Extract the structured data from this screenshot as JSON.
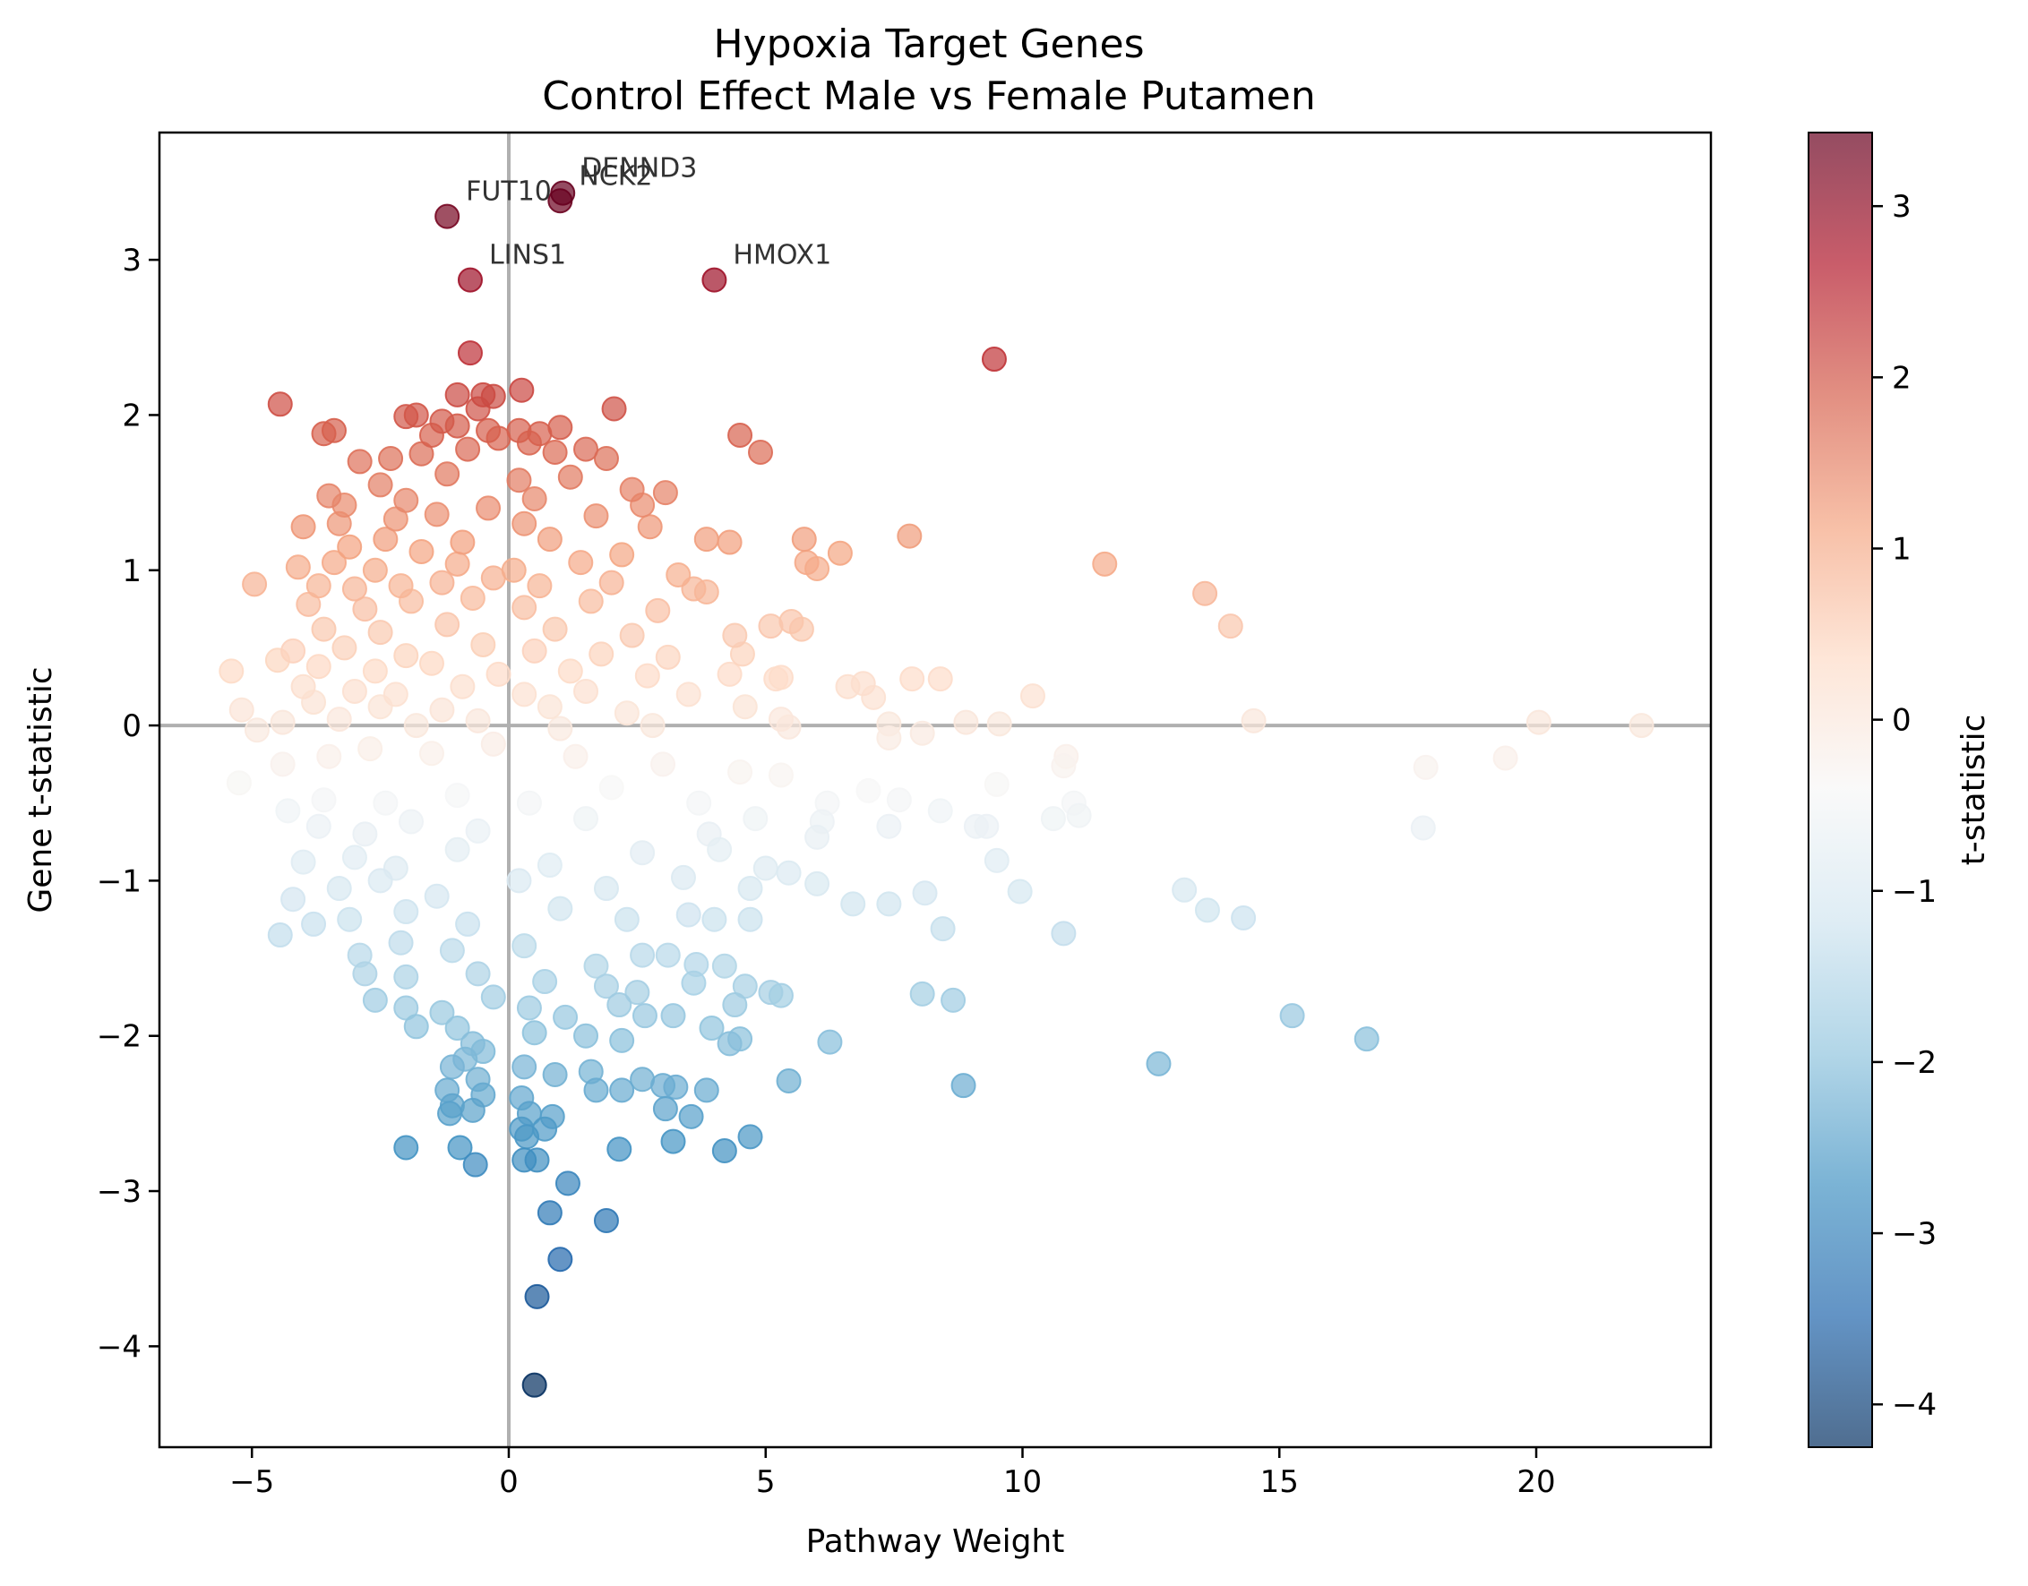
{
  "chart_data": {
    "type": "scatter",
    "title": "Hypoxia Target Genes",
    "subtitle": "Control Effect Male vs Female Putamen",
    "xlabel": "Pathway Weight",
    "ylabel": "Gene t-statistic",
    "xlim": [
      -6.8,
      23.4
    ],
    "ylim": [
      -4.65,
      3.82
    ],
    "xticks": [
      -5,
      0,
      5,
      10,
      15,
      20
    ],
    "xtick_labels": [
      "−5",
      "0",
      "5",
      "10",
      "15",
      "20"
    ],
    "yticks": [
      -4,
      -3,
      -2,
      -1,
      0,
      1,
      2,
      3
    ],
    "ytick_labels": [
      "−4",
      "−3",
      "−2",
      "−1",
      "0",
      "1",
      "2",
      "3"
    ],
    "reference_lines": {
      "x": 0,
      "y": 0
    },
    "grid": false,
    "colormap": "RdBu_r",
    "marker_alpha": 0.7,
    "colorbar": {
      "label": "t-statistic",
      "range": [
        -4.25,
        3.43
      ],
      "ticks": [
        -4,
        -3,
        -2,
        -1,
        0,
        1,
        2,
        3
      ],
      "tick_labels": [
        "−4",
        "−3",
        "−2",
        "−1",
        "0",
        "1",
        "2",
        "3"
      ]
    },
    "colors": {
      "neg_strong": "#053061",
      "neg_mid": "#2166ac",
      "neg_light": "#4393c3",
      "neg_pale": "#92c5de",
      "neg_faint": "#d1e5f0",
      "neutral": "#f7f7f7",
      "pos_faint": "#fddbc7",
      "pos_pale": "#f4a582",
      "pos_light": "#d6604d",
      "pos_mid": "#b2182b",
      "pos_strong": "#67001f",
      "axes": "#000000",
      "reference": "#b0b0b0"
    },
    "annotated_genes": [
      {
        "label": "DENND3",
        "x": 1.05,
        "y": 3.43
      },
      {
        "label": "NCK2",
        "x": 1.0,
        "y": 3.38
      },
      {
        "label": "FUT10",
        "x": -1.2,
        "y": 3.28
      },
      {
        "label": "LINS1",
        "x": -0.75,
        "y": 2.87
      },
      {
        "label": "HMOX1",
        "x": 4.0,
        "y": 2.87
      }
    ],
    "points": [
      [
        1.05,
        3.43
      ],
      [
        1.0,
        3.38
      ],
      [
        -1.2,
        3.28
      ],
      [
        -0.75,
        2.87
      ],
      [
        4.0,
        2.87
      ],
      [
        9.45,
        2.36
      ],
      [
        -0.75,
        2.4
      ],
      [
        0.25,
        2.16
      ],
      [
        -1.0,
        2.13
      ],
      [
        -0.5,
        2.13
      ],
      [
        -0.3,
        2.12
      ],
      [
        2.05,
        2.04
      ],
      [
        -4.45,
        2.07
      ],
      [
        -0.6,
        2.04
      ],
      [
        -1.8,
        2.0
      ],
      [
        -2.0,
        1.99
      ],
      [
        -1.3,
        1.96
      ],
      [
        -1.0,
        1.93
      ],
      [
        -0.4,
        1.9
      ],
      [
        0.2,
        1.9
      ],
      [
        1.0,
        1.92
      ],
      [
        0.6,
        1.88
      ],
      [
        4.5,
        1.87
      ],
      [
        4.9,
        1.76
      ],
      [
        -3.6,
        1.88
      ],
      [
        -3.4,
        1.9
      ],
      [
        -1.5,
        1.87
      ],
      [
        -0.2,
        1.85
      ],
      [
        0.4,
        1.82
      ],
      [
        1.5,
        1.78
      ],
      [
        -2.9,
        1.7
      ],
      [
        -2.3,
        1.72
      ],
      [
        -1.7,
        1.75
      ],
      [
        -0.8,
        1.78
      ],
      [
        0.9,
        1.76
      ],
      [
        1.9,
        1.72
      ],
      [
        -2.5,
        1.55
      ],
      [
        -1.2,
        1.62
      ],
      [
        0.2,
        1.58
      ],
      [
        1.2,
        1.6
      ],
      [
        2.4,
        1.52
      ],
      [
        3.05,
        1.5
      ],
      [
        -3.5,
        1.48
      ],
      [
        -3.2,
        1.42
      ],
      [
        -2.0,
        1.45
      ],
      [
        -0.4,
        1.4
      ],
      [
        0.5,
        1.46
      ],
      [
        2.6,
        1.42
      ],
      [
        -4.0,
        1.28
      ],
      [
        -3.3,
        1.3
      ],
      [
        -2.2,
        1.33
      ],
      [
        -1.4,
        1.36
      ],
      [
        0.3,
        1.3
      ],
      [
        1.7,
        1.35
      ],
      [
        2.75,
        1.28
      ],
      [
        3.85,
        1.2
      ],
      [
        4.3,
        1.18
      ],
      [
        5.75,
        1.2
      ],
      [
        7.8,
        1.22
      ],
      [
        -3.1,
        1.15
      ],
      [
        -2.4,
        1.2
      ],
      [
        -1.7,
        1.12
      ],
      [
        -0.9,
        1.18
      ],
      [
        0.8,
        1.2
      ],
      [
        2.2,
        1.1
      ],
      [
        5.8,
        1.05
      ],
      [
        6.0,
        1.01
      ],
      [
        6.45,
        1.11
      ],
      [
        11.6,
        1.04
      ],
      [
        -4.1,
        1.02
      ],
      [
        -3.4,
        1.05
      ],
      [
        -2.6,
        1.0
      ],
      [
        -1.0,
        1.04
      ],
      [
        0.1,
        1.0
      ],
      [
        1.4,
        1.05
      ],
      [
        3.3,
        0.97
      ],
      [
        -4.95,
        0.91
      ],
      [
        -3.7,
        0.9
      ],
      [
        -3.0,
        0.88
      ],
      [
        -2.1,
        0.9
      ],
      [
        -1.3,
        0.92
      ],
      [
        -0.3,
        0.95
      ],
      [
        0.6,
        0.9
      ],
      [
        2.0,
        0.92
      ],
      [
        3.6,
        0.88
      ],
      [
        3.85,
        0.86
      ],
      [
        13.55,
        0.85
      ],
      [
        -3.9,
        0.78
      ],
      [
        -2.8,
        0.75
      ],
      [
        -1.9,
        0.8
      ],
      [
        -0.7,
        0.82
      ],
      [
        0.3,
        0.76
      ],
      [
        1.6,
        0.8
      ],
      [
        2.9,
        0.74
      ],
      [
        5.5,
        0.67
      ],
      [
        5.1,
        0.64
      ],
      [
        5.7,
        0.62
      ],
      [
        14.05,
        0.64
      ],
      [
        -3.6,
        0.62
      ],
      [
        -2.5,
        0.6
      ],
      [
        -1.2,
        0.65
      ],
      [
        0.9,
        0.62
      ],
      [
        2.4,
        0.58
      ],
      [
        4.4,
        0.58
      ],
      [
        -4.2,
        0.48
      ],
      [
        -3.2,
        0.5
      ],
      [
        -2.0,
        0.45
      ],
      [
        -0.5,
        0.52
      ],
      [
        0.5,
        0.48
      ],
      [
        1.8,
        0.46
      ],
      [
        3.1,
        0.44
      ],
      [
        4.55,
        0.46
      ],
      [
        -5.4,
        0.35
      ],
      [
        -4.5,
        0.42
      ],
      [
        -3.7,
        0.38
      ],
      [
        -2.6,
        0.35
      ],
      [
        -1.5,
        0.4
      ],
      [
        -0.2,
        0.33
      ],
      [
        1.2,
        0.35
      ],
      [
        2.7,
        0.32
      ],
      [
        4.3,
        0.33
      ],
      [
        5.2,
        0.3
      ],
      [
        5.3,
        0.31
      ],
      [
        7.85,
        0.3
      ],
      [
        8.4,
        0.3
      ],
      [
        -4.0,
        0.25
      ],
      [
        -3.0,
        0.22
      ],
      [
        -2.2,
        0.2
      ],
      [
        -0.9,
        0.25
      ],
      [
        0.3,
        0.2
      ],
      [
        1.5,
        0.22
      ],
      [
        3.5,
        0.2
      ],
      [
        6.6,
        0.25
      ],
      [
        6.9,
        0.27
      ],
      [
        7.1,
        0.18
      ],
      [
        10.2,
        0.19
      ],
      [
        -5.2,
        0.1
      ],
      [
        -3.8,
        0.15
      ],
      [
        -2.5,
        0.12
      ],
      [
        -1.3,
        0.1
      ],
      [
        0.8,
        0.12
      ],
      [
        2.3,
        0.08
      ],
      [
        4.6,
        0.12
      ],
      [
        -4.9,
        -0.03
      ],
      [
        -4.4,
        0.02
      ],
      [
        -3.3,
        0.04
      ],
      [
        -1.8,
        0.0
      ],
      [
        -0.6,
        0.03
      ],
      [
        1.0,
        -0.02
      ],
      [
        2.8,
        0.0
      ],
      [
        5.3,
        0.04
      ],
      [
        5.45,
        -0.01
      ],
      [
        7.4,
        0.01
      ],
      [
        8.05,
        -0.05
      ],
      [
        8.9,
        0.02
      ],
      [
        9.55,
        0.01
      ],
      [
        14.5,
        0.03
      ],
      [
        20.05,
        0.02
      ],
      [
        22.05,
        0.0
      ],
      [
        7.4,
        -0.08
      ],
      [
        10.85,
        -0.2
      ],
      [
        10.8,
        -0.26
      ],
      [
        17.85,
        -0.27
      ],
      [
        19.4,
        -0.21
      ],
      [
        -5.25,
        -0.37
      ],
      [
        -4.4,
        -0.25
      ],
      [
        -3.5,
        -0.2
      ],
      [
        -2.7,
        -0.15
      ],
      [
        -1.5,
        -0.18
      ],
      [
        -0.3,
        -0.12
      ],
      [
        1.3,
        -0.2
      ],
      [
        3.0,
        -0.25
      ],
      [
        4.5,
        -0.3
      ],
      [
        5.3,
        -0.32
      ],
      [
        -4.3,
        -0.55
      ],
      [
        -3.6,
        -0.48
      ],
      [
        -2.4,
        -0.5
      ],
      [
        -1.0,
        -0.45
      ],
      [
        0.4,
        -0.5
      ],
      [
        2.0,
        -0.4
      ],
      [
        3.7,
        -0.5
      ],
      [
        4.8,
        -0.6
      ],
      [
        6.2,
        -0.5
      ],
      [
        7.0,
        -0.42
      ],
      [
        7.6,
        -0.48
      ],
      [
        8.4,
        -0.55
      ],
      [
        9.5,
        -0.38
      ],
      [
        9.3,
        -0.65
      ],
      [
        9.1,
        -0.65
      ],
      [
        10.6,
        -0.6
      ],
      [
        11.1,
        -0.58
      ],
      [
        11.0,
        -0.5
      ],
      [
        17.8,
        -0.66
      ],
      [
        -3.7,
        -0.65
      ],
      [
        -2.8,
        -0.7
      ],
      [
        -1.9,
        -0.62
      ],
      [
        -0.6,
        -0.68
      ],
      [
        1.5,
        -0.6
      ],
      [
        3.9,
        -0.7
      ],
      [
        6.1,
        -0.62
      ],
      [
        6.0,
        -0.72
      ],
      [
        7.4,
        -0.65
      ],
      [
        -4.0,
        -0.88
      ],
      [
        -3.0,
        -0.85
      ],
      [
        -2.2,
        -0.92
      ],
      [
        -1.0,
        -0.8
      ],
      [
        0.8,
        -0.9
      ],
      [
        2.6,
        -0.82
      ],
      [
        4.1,
        -0.8
      ],
      [
        5.0,
        -0.92
      ],
      [
        5.45,
        -0.95
      ],
      [
        9.5,
        -0.87
      ],
      [
        -3.3,
        -1.05
      ],
      [
        -2.5,
        -1.0
      ],
      [
        -1.4,
        -1.1
      ],
      [
        0.2,
        -1.0
      ],
      [
        1.9,
        -1.05
      ],
      [
        3.4,
        -0.98
      ],
      [
        4.7,
        -1.05
      ],
      [
        6.0,
        -1.02
      ],
      [
        8.1,
        -1.08
      ],
      [
        9.95,
        -1.07
      ],
      [
        13.15,
        -1.06
      ],
      [
        -4.2,
        -1.12
      ],
      [
        -3.8,
        -1.28
      ],
      [
        -3.1,
        -1.25
      ],
      [
        -2.0,
        -1.2
      ],
      [
        -0.8,
        -1.28
      ],
      [
        1.0,
        -1.18
      ],
      [
        2.3,
        -1.25
      ],
      [
        3.5,
        -1.22
      ],
      [
        4.0,
        -1.25
      ],
      [
        4.7,
        -1.25
      ],
      [
        6.7,
        -1.15
      ],
      [
        7.4,
        -1.15
      ],
      [
        8.45,
        -1.31
      ],
      [
        10.8,
        -1.34
      ],
      [
        13.6,
        -1.19
      ],
      [
        14.3,
        -1.24
      ],
      [
        -4.45,
        -1.35
      ],
      [
        -2.9,
        -1.48
      ],
      [
        -2.1,
        -1.4
      ],
      [
        -1.1,
        -1.45
      ],
      [
        0.3,
        -1.42
      ],
      [
        1.7,
        -1.55
      ],
      [
        2.6,
        -1.48
      ],
      [
        3.1,
        -1.48
      ],
      [
        3.65,
        -1.54
      ],
      [
        4.2,
        -1.55
      ],
      [
        -2.8,
        -1.6
      ],
      [
        -2.0,
        -1.62
      ],
      [
        -0.6,
        -1.6
      ],
      [
        0.7,
        -1.65
      ],
      [
        1.9,
        -1.68
      ],
      [
        2.5,
        -1.72
      ],
      [
        3.6,
        -1.66
      ],
      [
        4.6,
        -1.68
      ],
      [
        5.1,
        -1.72
      ],
      [
        5.3,
        -1.74
      ],
      [
        8.05,
        -1.73
      ],
      [
        8.65,
        -1.77
      ],
      [
        -2.6,
        -1.77
      ],
      [
        -2.0,
        -1.82
      ],
      [
        -1.3,
        -1.85
      ],
      [
        -0.3,
        -1.75
      ],
      [
        0.4,
        -1.82
      ],
      [
        1.1,
        -1.88
      ],
      [
        2.15,
        -1.8
      ],
      [
        2.65,
        -1.87
      ],
      [
        3.2,
        -1.87
      ],
      [
        3.95,
        -1.95
      ],
      [
        4.4,
        -1.8
      ],
      [
        15.25,
        -1.87
      ],
      [
        -1.8,
        -1.94
      ],
      [
        -1.0,
        -1.95
      ],
      [
        0.5,
        -1.98
      ],
      [
        1.5,
        -2.0
      ],
      [
        2.2,
        -2.03
      ],
      [
        4.3,
        -2.05
      ],
      [
        4.5,
        -2.02
      ],
      [
        6.25,
        -2.04
      ],
      [
        16.7,
        -2.02
      ],
      [
        -0.7,
        -2.05
      ],
      [
        -0.5,
        -2.1
      ],
      [
        -0.85,
        -2.15
      ],
      [
        -1.1,
        -2.2
      ],
      [
        0.3,
        -2.2
      ],
      [
        0.9,
        -2.25
      ],
      [
        1.6,
        -2.23
      ],
      [
        2.6,
        -2.28
      ],
      [
        3.0,
        -2.32
      ],
      [
        12.65,
        -2.18
      ],
      [
        -1.2,
        -2.35
      ],
      [
        -0.6,
        -2.28
      ],
      [
        -0.5,
        -2.38
      ],
      [
        0.25,
        -2.4
      ],
      [
        1.7,
        -2.35
      ],
      [
        2.2,
        -2.35
      ],
      [
        3.25,
        -2.33
      ],
      [
        3.85,
        -2.35
      ],
      [
        5.45,
        -2.29
      ],
      [
        8.85,
        -2.32
      ],
      [
        -1.15,
        -2.5
      ],
      [
        -1.1,
        -2.45
      ],
      [
        -0.7,
        -2.48
      ],
      [
        0.4,
        -2.5
      ],
      [
        0.85,
        -2.52
      ],
      [
        3.05,
        -2.47
      ],
      [
        3.55,
        -2.52
      ],
      [
        -2.0,
        -2.72
      ],
      [
        -0.95,
        -2.72
      ],
      [
        -0.65,
        -2.83
      ],
      [
        0.25,
        -2.6
      ],
      [
        0.35,
        -2.65
      ],
      [
        0.7,
        -2.6
      ],
      [
        0.3,
        -2.8
      ],
      [
        0.55,
        -2.8
      ],
      [
        2.15,
        -2.73
      ],
      [
        3.2,
        -2.68
      ],
      [
        4.2,
        -2.74
      ],
      [
        4.7,
        -2.65
      ],
      [
        1.15,
        -2.95
      ],
      [
        0.8,
        -3.14
      ],
      [
        1.9,
        -3.19
      ],
      [
        1.0,
        -3.44
      ],
      [
        0.55,
        -3.68
      ],
      [
        0.5,
        -4.25
      ]
    ]
  }
}
